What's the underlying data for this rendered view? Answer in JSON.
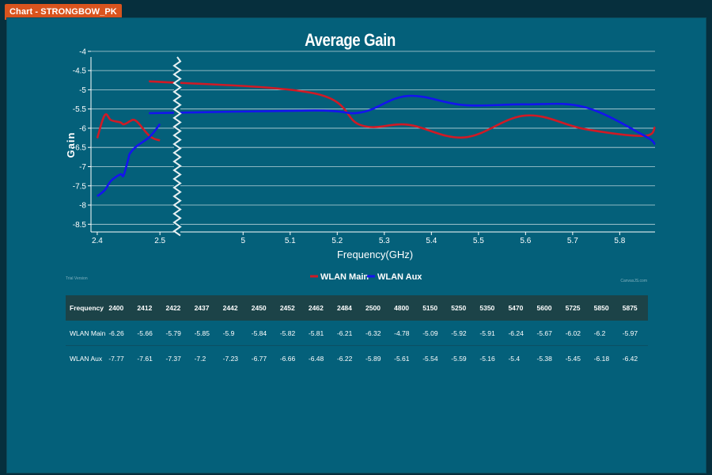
{
  "window": {
    "title": "Chart - STRONGBOW_PK"
  },
  "colors": {
    "main": "#d01a25",
    "aux": "#1414ee",
    "background": "#04607a",
    "grid": "#b9d4da"
  },
  "watermarks": {
    "left": "Trial Version",
    "right": "CanvasJS.com"
  },
  "chart_data": {
    "type": "line",
    "title": "Average Gain",
    "xlabel": "Frequency(GHz)",
    "ylabel": "Gain",
    "ylim": [
      -8.7,
      -3.9
    ],
    "yticks": [
      "-4",
      "-4.5",
      "-5",
      "-5.5",
      "-6",
      "-6.5",
      "-7",
      "-7.5",
      "-8",
      "-8.5"
    ],
    "axis_break": [
      2.52,
      4.85
    ],
    "xticks": [
      "2.4",
      "2.5",
      "5",
      "5.1",
      "5.2",
      "5.3",
      "5.4",
      "5.5",
      "5.6",
      "5.7",
      "5.8"
    ],
    "legend": {
      "position": "bottom-center",
      "entries": [
        "WLAN Main",
        "WLAN Aux"
      ]
    },
    "x": [
      2.4,
      2.412,
      2.422,
      2.437,
      2.442,
      2.45,
      2.452,
      2.462,
      2.484,
      2.5,
      4.8,
      5.15,
      5.25,
      5.35,
      5.47,
      5.6,
      5.725,
      5.85,
      5.875
    ],
    "series": [
      {
        "name": "WLAN Main",
        "values": [
          -6.26,
          -5.66,
          -5.79,
          -5.85,
          -5.9,
          -5.84,
          -5.82,
          -5.81,
          -6.21,
          -6.32,
          -4.78,
          -5.09,
          -5.92,
          -5.91,
          -6.24,
          -5.67,
          -6.02,
          -6.2,
          -5.97
        ]
      },
      {
        "name": "WLAN Aux",
        "values": [
          -7.77,
          -7.61,
          -7.37,
          -7.2,
          -7.23,
          -6.77,
          -6.66,
          -6.48,
          -6.22,
          -5.89,
          -5.61,
          -5.54,
          -5.59,
          -5.16,
          -5.4,
          -5.38,
          -5.45,
          -6.18,
          -6.42
        ]
      }
    ]
  },
  "table": {
    "header_label": "Frequency",
    "columns": [
      "2400",
      "2412",
      "2422",
      "2437",
      "2442",
      "2450",
      "2452",
      "2462",
      "2484",
      "2500",
      "4800",
      "5150",
      "5250",
      "5350",
      "5470",
      "5600",
      "5725",
      "5850",
      "5875"
    ],
    "rows": [
      {
        "label": "WLAN Main",
        "values": [
          "-6.26",
          "-5.66",
          "-5.79",
          "-5.85",
          "-5.9",
          "-5.84",
          "-5.82",
          "-5.81",
          "-6.21",
          "-6.32",
          "-4.78",
          "-5.09",
          "-5.92",
          "-5.91",
          "-6.24",
          "-5.67",
          "-6.02",
          "-6.2",
          "-5.97"
        ]
      },
      {
        "label": "WLAN Aux",
        "values": [
          "-7.77",
          "-7.61",
          "-7.37",
          "-7.2",
          "-7.23",
          "-6.77",
          "-6.66",
          "-6.48",
          "-6.22",
          "-5.89",
          "-5.61",
          "-5.54",
          "-5.59",
          "-5.16",
          "-5.4",
          "-5.38",
          "-5.45",
          "-6.18",
          "-6.42"
        ]
      }
    ]
  }
}
